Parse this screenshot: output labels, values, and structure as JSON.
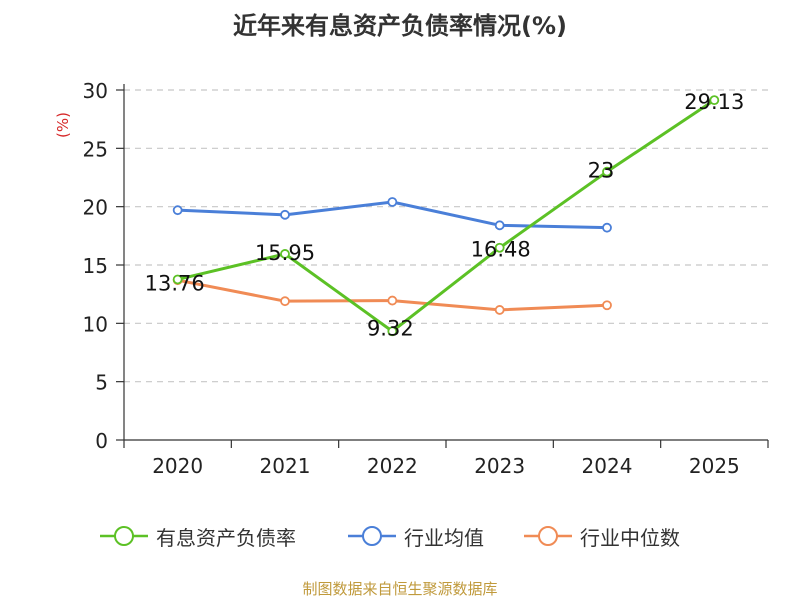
{
  "chart_data": {
    "type": "line",
    "title": "近年来有息资产负债率情况(%)",
    "ylabel": "(%)",
    "categories": [
      "2020",
      "2021",
      "2022",
      "2023",
      "2024",
      "2025"
    ],
    "ylim": [
      0,
      30
    ],
    "yticks": [
      "0",
      "5",
      "10",
      "15",
      "20",
      "25",
      "30"
    ],
    "grid": true,
    "legend_position": "bottom",
    "series": [
      {
        "name": "有息资产负债率",
        "color": "#5cc125",
        "values": [
          13.76,
          15.95,
          9.32,
          16.48,
          23,
          29.13
        ],
        "labels": [
          "13.76",
          "15.95",
          "9.32",
          "16.48",
          "23",
          "29.13"
        ]
      },
      {
        "name": "行业均值",
        "color": "#4a7fd8",
        "values": [
          19.7,
          19.3,
          20.4,
          18.4,
          18.2,
          null
        ]
      },
      {
        "name": "行业中位数",
        "color": "#f08b55",
        "values": [
          13.7,
          11.9,
          11.95,
          11.15,
          11.55,
          null
        ]
      }
    ]
  },
  "footer": {
    "source": "制图数据来自恒生聚源数据库"
  }
}
